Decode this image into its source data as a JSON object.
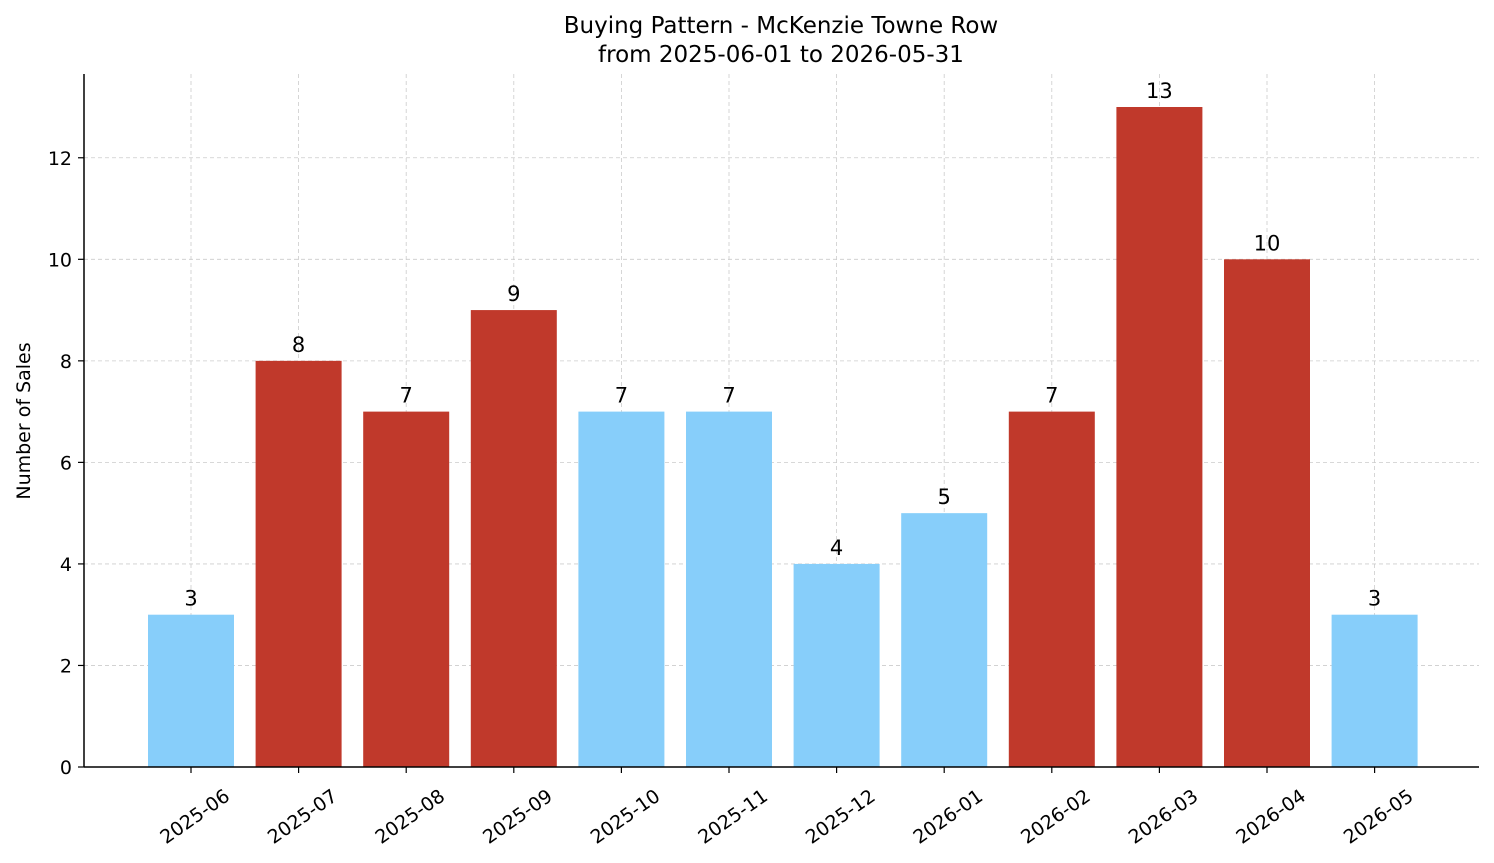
{
  "chart_data": {
    "type": "bar",
    "title": "Buying Pattern - McKenzie Towne Row",
    "subtitle": "from 2025-06-01 to 2026-05-31",
    "xlabel": "",
    "ylabel": "Number of Sales",
    "categories": [
      "2025-06",
      "2025-07",
      "2025-08",
      "2025-09",
      "2025-10",
      "2025-11",
      "2025-12",
      "2026-01",
      "2026-02",
      "2026-03",
      "2026-04",
      "2026-05"
    ],
    "values": [
      3,
      8,
      7,
      9,
      7,
      7,
      4,
      5,
      7,
      13,
      10,
      3
    ],
    "bar_colors": [
      "#87CEFA",
      "#C0392B",
      "#C0392B",
      "#C0392B",
      "#87CEFA",
      "#87CEFA",
      "#87CEFA",
      "#87CEFA",
      "#C0392B",
      "#C0392B",
      "#C0392B",
      "#87CEFA"
    ],
    "ylim": [
      0,
      13.65
    ],
    "yticks": [
      0,
      2,
      4,
      6,
      8,
      10,
      12
    ],
    "grid": true,
    "data_labels": true
  }
}
